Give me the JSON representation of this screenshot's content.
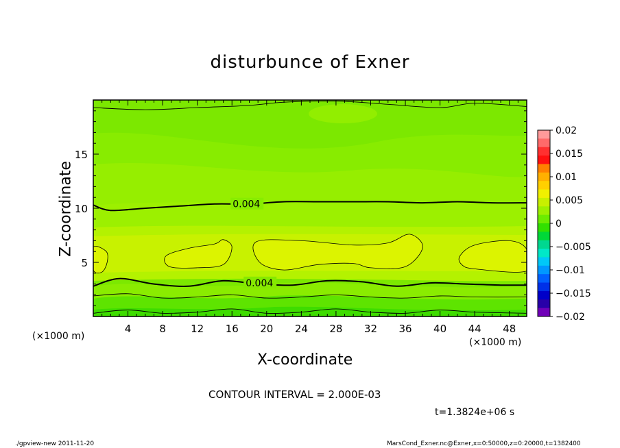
{
  "chart_data": {
    "type": "heatmap",
    "title": "disturbunce of Exner",
    "xlabel": "X-coordinate",
    "ylabel": "Z-coordinate",
    "x_unit_left": "(×1000 m)",
    "x_unit_right": "(×1000 m)",
    "xlim": [
      0,
      50
    ],
    "ylim": [
      0,
      20
    ],
    "x_ticks": [
      4,
      8,
      12,
      16,
      20,
      24,
      28,
      32,
      36,
      40,
      44,
      48
    ],
    "y_ticks": [
      5,
      10,
      15
    ],
    "colorbar": {
      "ticks": [
        "0.02",
        "0.015",
        "0.01",
        "0.005",
        "0",
        "−0.005",
        "−0.01",
        "−0.015",
        "−0.02"
      ],
      "tick_values": [
        0.02,
        0.015,
        0.01,
        0.005,
        0,
        -0.005,
        -0.01,
        -0.015,
        -0.02
      ],
      "colors_top_to_bottom": [
        "#ff9a9a",
        "#ff6a6a",
        "#ff3030",
        "#ff1010",
        "#ff8000",
        "#ffb000",
        "#ffd000",
        "#f0f000",
        "#c8f000",
        "#9ef000",
        "#6cec00",
        "#32e000",
        "#00d838",
        "#00d890",
        "#00e8c8",
        "#00c8f8",
        "#0098ff",
        "#0060ff",
        "#0030e8",
        "#0000c8",
        "#2800a8",
        "#7000b8"
      ]
    },
    "contours": [
      {
        "label": "0.004",
        "z_profile": [
          [
            0,
            10.3
          ],
          [
            2,
            9.8
          ],
          [
            6,
            10.0
          ],
          [
            10,
            10.2
          ],
          [
            14,
            10.4
          ],
          [
            18,
            10.4
          ],
          [
            22,
            10.6
          ],
          [
            26,
            10.6
          ],
          [
            30,
            10.6
          ],
          [
            34,
            10.6
          ],
          [
            38,
            10.5
          ],
          [
            42,
            10.6
          ],
          [
            46,
            10.5
          ],
          [
            50,
            10.5
          ]
        ]
      },
      {
        "label": "0.004",
        "z_profile": [
          [
            0,
            2.8
          ],
          [
            3,
            3.5
          ],
          [
            7,
            3.0
          ],
          [
            11,
            2.8
          ],
          [
            15,
            3.3
          ],
          [
            19,
            3.0
          ],
          [
            23,
            2.9
          ],
          [
            27,
            3.3
          ],
          [
            31,
            3.2
          ],
          [
            35,
            2.8
          ],
          [
            39,
            3.1
          ],
          [
            43,
            3.0
          ],
          [
            47,
            2.9
          ],
          [
            50,
            2.9
          ]
        ]
      },
      {
        "label": "",
        "z_profile": [
          [
            0,
            1.9
          ],
          [
            4,
            2.1
          ],
          [
            8,
            1.7
          ],
          [
            12,
            1.8
          ],
          [
            16,
            2.0
          ],
          [
            20,
            1.7
          ],
          [
            24,
            1.8
          ],
          [
            28,
            2.0
          ],
          [
            32,
            1.8
          ],
          [
            36,
            1.7
          ],
          [
            40,
            1.9
          ],
          [
            44,
            1.8
          ],
          [
            50,
            1.8
          ]
        ]
      },
      {
        "label": "",
        "z_profile": [
          [
            0,
            0.3
          ],
          [
            4,
            0.6
          ],
          [
            8,
            0.3
          ],
          [
            12,
            0.4
          ],
          [
            16,
            0.7
          ],
          [
            20,
            0.3
          ],
          [
            24,
            0.4
          ],
          [
            28,
            0.7
          ],
          [
            32,
            0.4
          ],
          [
            36,
            0.3
          ],
          [
            40,
            0.6
          ],
          [
            44,
            0.4
          ],
          [
            50,
            0.3
          ]
        ]
      },
      {
        "label": "",
        "z_profile": [
          [
            0,
            19.3
          ],
          [
            6,
            19.1
          ],
          [
            12,
            19.3
          ],
          [
            18,
            19.5
          ],
          [
            22,
            19.8
          ],
          [
            28,
            19.9
          ],
          [
            34,
            19.6
          ],
          [
            40,
            19.3
          ],
          [
            44,
            19.7
          ],
          [
            50,
            19.4
          ]
        ]
      }
    ],
    "closed_contours_x_z": [
      [
        [
          0,
          6.4
        ],
        [
          1.5,
          6.0
        ],
        [
          1.6,
          5.0
        ],
        [
          1.0,
          4.1
        ],
        [
          0,
          4.3
        ]
      ],
      [
        [
          8.4,
          5.6
        ],
        [
          11,
          6.3
        ],
        [
          14,
          6.7
        ],
        [
          15,
          7.1
        ],
        [
          16,
          6.4
        ],
        [
          15,
          4.8
        ],
        [
          12,
          4.5
        ],
        [
          8.8,
          4.6
        ]
      ],
      [
        [
          18.8,
          6.9
        ],
        [
          24,
          7.0
        ],
        [
          30,
          6.6
        ],
        [
          34,
          6.8
        ],
        [
          36.5,
          7.6
        ],
        [
          38,
          6.4
        ],
        [
          36,
          4.6
        ],
        [
          32,
          4.5
        ],
        [
          30,
          4.9
        ],
        [
          26,
          4.8
        ],
        [
          22,
          4.3
        ],
        [
          19.2,
          5.0
        ]
      ],
      [
        [
          42.3,
          5.6
        ],
        [
          44,
          6.6
        ],
        [
          48,
          7.0
        ],
        [
          50,
          6.2
        ],
        [
          50,
          4.2
        ],
        [
          44,
          4.4
        ],
        [
          42.5,
          4.8
        ]
      ]
    ]
  },
  "contour_interval": "CONTOUR INTERVAL = 2.000E-03",
  "time_label": "t=1.3824e+06 s",
  "footer_left": "./gpview-new   2011-11-20",
  "footer_right": "MarsCond_Exner.nc@Exner,x=0:50000,z=0:20000,t=1382400"
}
